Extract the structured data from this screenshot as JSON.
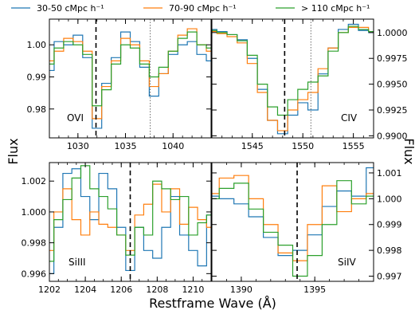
{
  "figure": {
    "ylabel_left": "Flux",
    "ylabel_right": "Flux",
    "xlabel": "Restframe Wave (Å)",
    "legend": [
      {
        "label": "30-50 cMpc h⁻¹",
        "color": "#1f77b4"
      },
      {
        "label": "70-90 cMpc h⁻¹",
        "color": "#ff7f0e"
      },
      {
        "label": "> 110 cMpc h⁻¹",
        "color": "#2ca02c"
      }
    ]
  },
  "chart_data": [
    {
      "type": "line",
      "panel": "top-left",
      "ion_label": "OVI",
      "ylim": [
        0.971,
        1.008
      ],
      "xlim": [
        1027,
        1044
      ],
      "yticks": [
        0.98,
        0.99,
        1.0
      ],
      "ytick_labels": [
        "0.98",
        "0.99",
        "1.00"
      ],
      "xticks": [
        1030,
        1035,
        1040
      ],
      "xtick_labels": [
        "1030",
        "1035",
        "1040"
      ],
      "xminor_step": 1,
      "vlines": [
        {
          "x": 1031.9,
          "style": "dashed"
        },
        {
          "x": 1037.6,
          "style": "dotted"
        }
      ],
      "x": [
        1027,
        1028,
        1029,
        1030,
        1031,
        1032,
        1033,
        1034,
        1035,
        1036,
        1037,
        1038,
        1039,
        1040,
        1041,
        1042,
        1043,
        1044
      ],
      "series": [
        {
          "name": "30-50 cMpc h⁻¹",
          "values": [
            0.992,
            1.001,
            1.0,
            1.003,
            0.996,
            0.974,
            0.988,
            0.996,
            1.004,
            1.001,
            0.993,
            0.984,
            0.991,
            0.997,
            1.0,
            1.001,
            0.997,
            0.995
          ]
        },
        {
          "name": "70-90 cMpc h⁻¹",
          "values": [
            0.995,
            0.998,
            1.002,
            1.001,
            0.998,
            0.977,
            0.987,
            0.995,
            1.002,
            1.0,
            0.995,
            0.987,
            0.991,
            0.998,
            1.003,
            1.005,
            1.0,
            0.998
          ]
        },
        {
          "name": "> 110 cMpc h⁻¹",
          "values": [
            0.994,
            0.999,
            1.001,
            1.0,
            0.997,
            0.981,
            0.986,
            0.994,
            1.0,
            0.999,
            0.994,
            0.99,
            0.993,
            0.998,
            1.002,
            1.004,
            1.0,
            0.999
          ]
        }
      ]
    },
    {
      "type": "line",
      "panel": "top-right",
      "ion_label": "CIV",
      "ylim": [
        0.9898,
        1.0013
      ],
      "xlim": [
        1541,
        1557
      ],
      "yticks": [
        0.99,
        0.9925,
        0.995,
        0.9975,
        1.0
      ],
      "ytick_labels": [
        "0.9900",
        "0.9925",
        "0.9950",
        "0.9975",
        "1.0000"
      ],
      "xticks": [
        1545,
        1550,
        1555
      ],
      "xtick_labels": [
        "1545",
        "1550",
        "1555"
      ],
      "xminor_step": 1,
      "vlines": [
        {
          "x": 1548.2,
          "style": "dashed"
        },
        {
          "x": 1550.8,
          "style": "dotted"
        }
      ],
      "x": [
        1541,
        1542,
        1543,
        1544,
        1545,
        1546,
        1547,
        1548,
        1549,
        1550,
        1551,
        1552,
        1553,
        1554,
        1555,
        1556,
        1557
      ],
      "series": [
        {
          "name": "30-50 cMpc h⁻¹",
          "values": [
            1.0003,
            1.0001,
            0.9998,
            0.9993,
            0.9975,
            0.9945,
            0.9915,
            0.9902,
            0.992,
            0.9932,
            0.9925,
            0.996,
            0.9985,
            1.0003,
            1.0008,
            1.0002,
            1.0
          ]
        },
        {
          "name": "70-90 cMpc h⁻¹",
          "values": [
            1.0001,
            0.9999,
            0.9996,
            0.999,
            0.997,
            0.9942,
            0.9915,
            0.9905,
            0.9925,
            0.9935,
            0.9942,
            0.9965,
            0.9985,
            1.0,
            1.0005,
            1.0005,
            1.0001
          ]
        },
        {
          "name": "> 110 cMpc h⁻¹",
          "values": [
            1.0002,
            1.0,
            0.9998,
            0.9992,
            0.9978,
            0.995,
            0.9928,
            0.992,
            0.9935,
            0.9945,
            0.9952,
            0.9958,
            0.9982,
            1.0,
            1.0006,
            1.0003,
            1.0001
          ]
        }
      ]
    },
    {
      "type": "line",
      "panel": "bottom-left",
      "ion_label": "SiIII",
      "ylim": [
        0.9955,
        1.0032
      ],
      "xlim": [
        1202,
        1211
      ],
      "yticks": [
        0.996,
        0.998,
        1.0,
        1.002
      ],
      "ytick_labels": [
        "0.996",
        "0.998",
        "1.000",
        "1.002"
      ],
      "xticks": [
        1202,
        1204,
        1206,
        1208,
        1210
      ],
      "xtick_labels": [
        "1202",
        "1204",
        "1206",
        "1208",
        "1210"
      ],
      "xminor_step": 0.5,
      "vlines": [
        {
          "x": 1206.5,
          "style": "dashed"
        }
      ],
      "x": [
        1202,
        1202.5,
        1203,
        1203.5,
        1204,
        1204.5,
        1205,
        1205.5,
        1206,
        1206.5,
        1207,
        1207.5,
        1208,
        1208.5,
        1209,
        1209.5,
        1210,
        1210.5,
        1211
      ],
      "series": [
        {
          "name": "30-50 cMpc h⁻¹",
          "values": [
            0.996,
            0.999,
            1.0025,
            1.0028,
            1.001,
            0.9995,
            1.0025,
            1.0015,
            0.999,
            0.9962,
            0.999,
            0.9975,
            0.997,
            0.999,
            1.001,
            0.9985,
            0.9975,
            0.9965,
            0.9998
          ]
        },
        {
          "name": "70-90 cMpc h⁻¹",
          "values": [
            0.9975,
            1.0,
            1.0015,
            0.9995,
            0.9985,
            1.0,
            0.9992,
            0.999,
            0.9985,
            0.9975,
            0.9998,
            1.0005,
            1.0018,
            1.0,
            1.0015,
            0.9992,
            1.0003,
            0.9995,
            0.999
          ]
        },
        {
          "name": "> 110 cMpc h⁻¹",
          "values": [
            0.9968,
            0.9995,
            1.0008,
            1.0022,
            1.003,
            1.0015,
            1.001,
            1.0002,
            0.9985,
            0.9972,
            0.999,
            0.9985,
            1.002,
            1.0015,
            1.0008,
            1.001,
            0.9985,
            0.9993,
            0.9998
          ]
        }
      ]
    },
    {
      "type": "line",
      "panel": "bottom-right",
      "ion_label": "SiIV",
      "ylim": [
        0.9968,
        1.0014
      ],
      "xlim": [
        1388,
        1399
      ],
      "yticks": [
        0.997,
        0.998,
        0.999,
        1.0,
        1.001
      ],
      "ytick_labels": [
        "0.997",
        "0.998",
        "0.999",
        "1.000",
        "1.001"
      ],
      "xticks": [
        1390,
        1395
      ],
      "xtick_labels": [
        "1390",
        "1395"
      ],
      "xminor_step": 1,
      "vlines": [
        {
          "x": 1393.8,
          "style": "dashed"
        }
      ],
      "x": [
        1388,
        1389,
        1390,
        1391,
        1392,
        1393,
        1394,
        1395,
        1396,
        1397,
        1398,
        1399
      ],
      "series": [
        {
          "name": "30-50 cMpc h⁻¹",
          "values": [
            1.0001,
            1.0,
            0.9998,
            0.9993,
            0.9985,
            0.9978,
            0.998,
            0.9986,
            0.9997,
            1.0003,
            1.0001,
            1.0012
          ]
        },
        {
          "name": "70-90 cMpc h⁻¹",
          "values": [
            1.0002,
            1.0008,
            1.0009,
            1.0,
            0.999,
            0.9979,
            0.9976,
            0.999,
            1.0005,
            0.9995,
            1.0,
            1.0002
          ]
        },
        {
          "name": "> 110 cMpc h⁻¹",
          "values": [
            1.0,
            1.0004,
            1.0006,
            0.9996,
            0.9987,
            0.9982,
            0.997,
            0.9978,
            0.999,
            1.0007,
            0.9998,
            1.0001
          ]
        }
      ]
    }
  ]
}
